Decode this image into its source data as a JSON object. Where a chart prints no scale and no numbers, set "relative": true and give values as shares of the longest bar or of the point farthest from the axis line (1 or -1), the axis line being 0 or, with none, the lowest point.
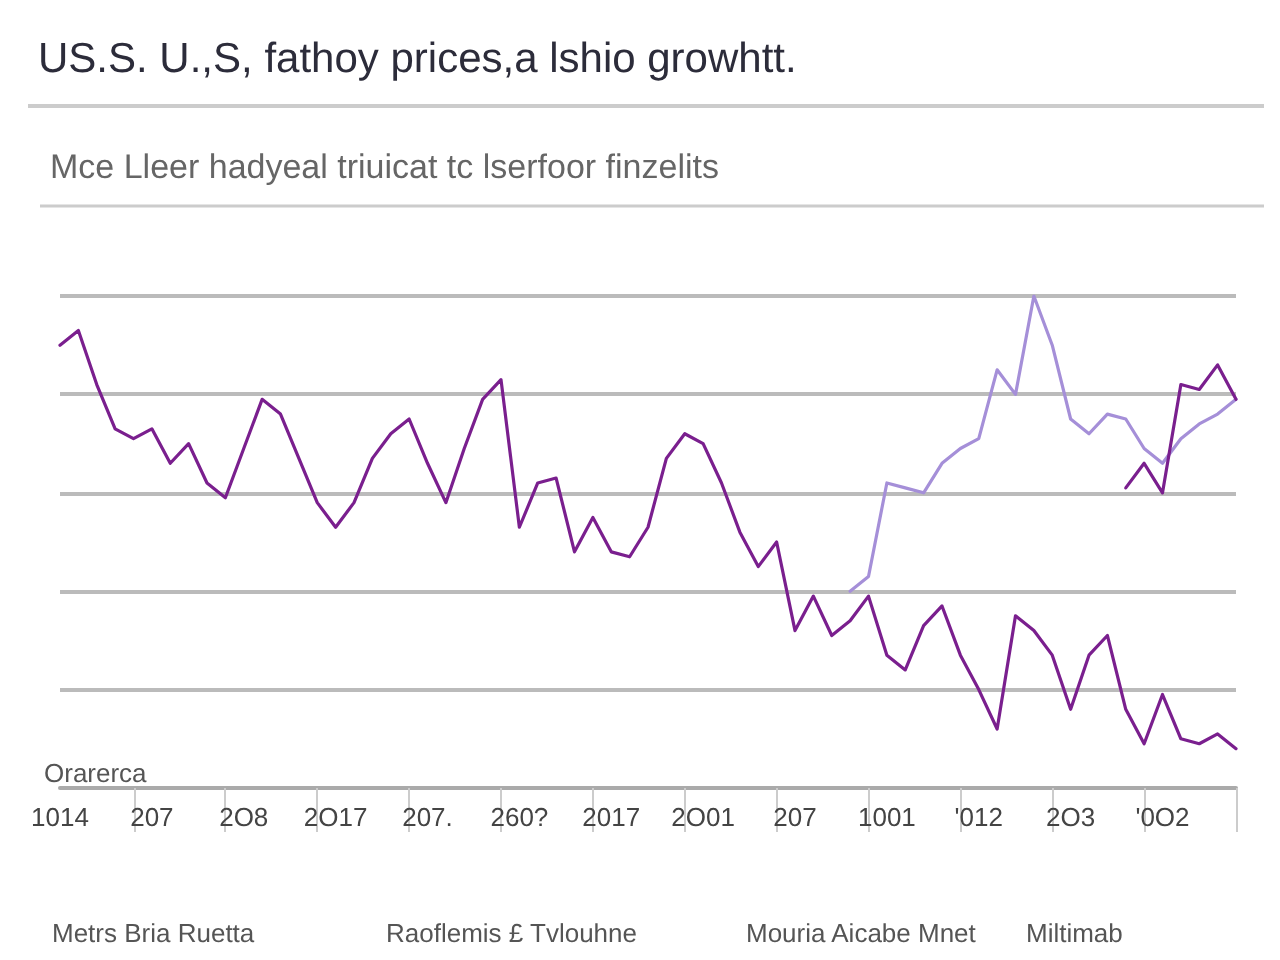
{
  "chart_data": {
    "type": "line",
    "title": "US.S. U.,S, fathoy prices,a lshio growhtt.",
    "subtitle": "Mce Lleer hadyeal triuicat tc lserfoor finzelits",
    "categories": [
      "1014",
      null,
      null,
      null,
      null,
      "207",
      null,
      null,
      null,
      null,
      "2O8",
      null,
      null,
      null,
      null,
      "2O17",
      null,
      null,
      null,
      null,
      "207.",
      null,
      null,
      null,
      null,
      "260?",
      null,
      null,
      null,
      null,
      "2017",
      null,
      null,
      null,
      null,
      "2O01",
      null,
      null,
      null,
      null,
      "207",
      null,
      null,
      null,
      null,
      "1001",
      null,
      null,
      null,
      null,
      "'012",
      null,
      null,
      null,
      null,
      "2O3",
      null,
      null,
      null,
      null,
      "'0O2",
      null,
      null,
      null,
      null
    ],
    "relative": true,
    "grid": "y",
    "marker": "none",
    "line_style": "solid",
    "series": [
      {
        "color": "#7a1f8e",
        "values": [
          0.9,
          0.93,
          0.82,
          0.73,
          0.71,
          0.73,
          0.66,
          0.7,
          0.62,
          0.59,
          0.69,
          0.79,
          0.76,
          0.67,
          0.58,
          0.53,
          0.58,
          0.67,
          0.72,
          0.75,
          0.66,
          0.58,
          0.69,
          0.79,
          0.83,
          0.53,
          0.62,
          0.63,
          0.48,
          0.55,
          0.48,
          0.47,
          0.53,
          0.67,
          0.72,
          0.7,
          0.62,
          0.52,
          0.45,
          0.5,
          0.32,
          0.39,
          0.31,
          0.34,
          0.39,
          0.27,
          0.24,
          0.33,
          0.37,
          0.27,
          0.2,
          0.12,
          0.35,
          0.32,
          0.27,
          0.16,
          0.27,
          0.31,
          0.16,
          0.09,
          0.19,
          0.1,
          0.09,
          0.11,
          0.08
        ]
      },
      {
        "color": "#a58fd8",
        "values": [
          null,
          null,
          null,
          null,
          null,
          null,
          null,
          null,
          null,
          null,
          null,
          null,
          null,
          null,
          null,
          null,
          null,
          null,
          null,
          null,
          null,
          null,
          null,
          null,
          null,
          null,
          null,
          null,
          null,
          null,
          null,
          null,
          null,
          null,
          null,
          null,
          null,
          null,
          null,
          null,
          null,
          null,
          null,
          0.4,
          0.43,
          0.62,
          0.61,
          0.6,
          0.66,
          0.69,
          0.71,
          0.85,
          0.8,
          1.0,
          0.9,
          0.75,
          0.72,
          0.76,
          0.75,
          0.69,
          0.66,
          0.71,
          0.74,
          0.76,
          0.79
        ]
      },
      {
        "color": "#7a1f8e",
        "values": [
          null,
          null,
          null,
          null,
          null,
          null,
          null,
          null,
          null,
          null,
          null,
          null,
          null,
          null,
          null,
          null,
          null,
          null,
          null,
          null,
          null,
          null,
          null,
          null,
          null,
          null,
          null,
          null,
          null,
          null,
          null,
          null,
          null,
          null,
          null,
          null,
          null,
          null,
          null,
          null,
          null,
          null,
          null,
          null,
          null,
          null,
          null,
          null,
          null,
          null,
          null,
          null,
          null,
          null,
          null,
          null,
          null,
          null,
          0.61,
          0.66,
          0.6,
          0.82,
          0.81,
          0.86,
          0.79
        ]
      }
    ],
    "annotations": [
      "Orarerca",
      "Metrs Bria Ruetta",
      "Raoflemis £ Tvlouhne",
      "Mouria Aicabe Mnet",
      "Miltimab"
    ]
  }
}
